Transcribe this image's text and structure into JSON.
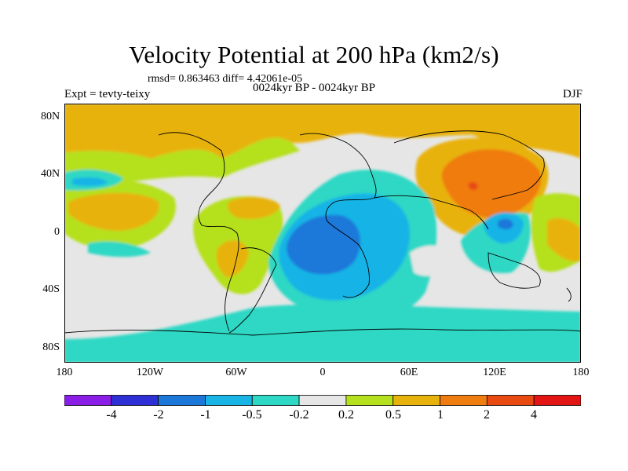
{
  "title": "Velocity Potential at 200 hPa (km2/s)",
  "stats_text": "rmsd= 0.863463 diff= 4.42061e-05",
  "experiment_text": "Expt = tevty-teixy",
  "period_text": "0024kyr BP - 0024kyr BP",
  "season": "DJF",
  "lat_ticks": [
    "80N",
    "40N",
    "0",
    "40S",
    "80S"
  ],
  "lon_ticks": [
    "180",
    "120W",
    "60W",
    "0",
    "60E",
    "120E",
    "180"
  ],
  "colorbar": {
    "labels": [
      "-4",
      "-2",
      "-1",
      "-0.5",
      "-0.2",
      "0.2",
      "0.5",
      "1",
      "2",
      "4"
    ],
    "colors": [
      "#8a1ee6",
      "#2f2fd6",
      "#1b78d9",
      "#19b4e6",
      "#2fd8c4",
      "#e6e6e6",
      "#b5e01e",
      "#e8b20c",
      "#ef7c0f",
      "#e84a12",
      "#e21414"
    ]
  }
}
